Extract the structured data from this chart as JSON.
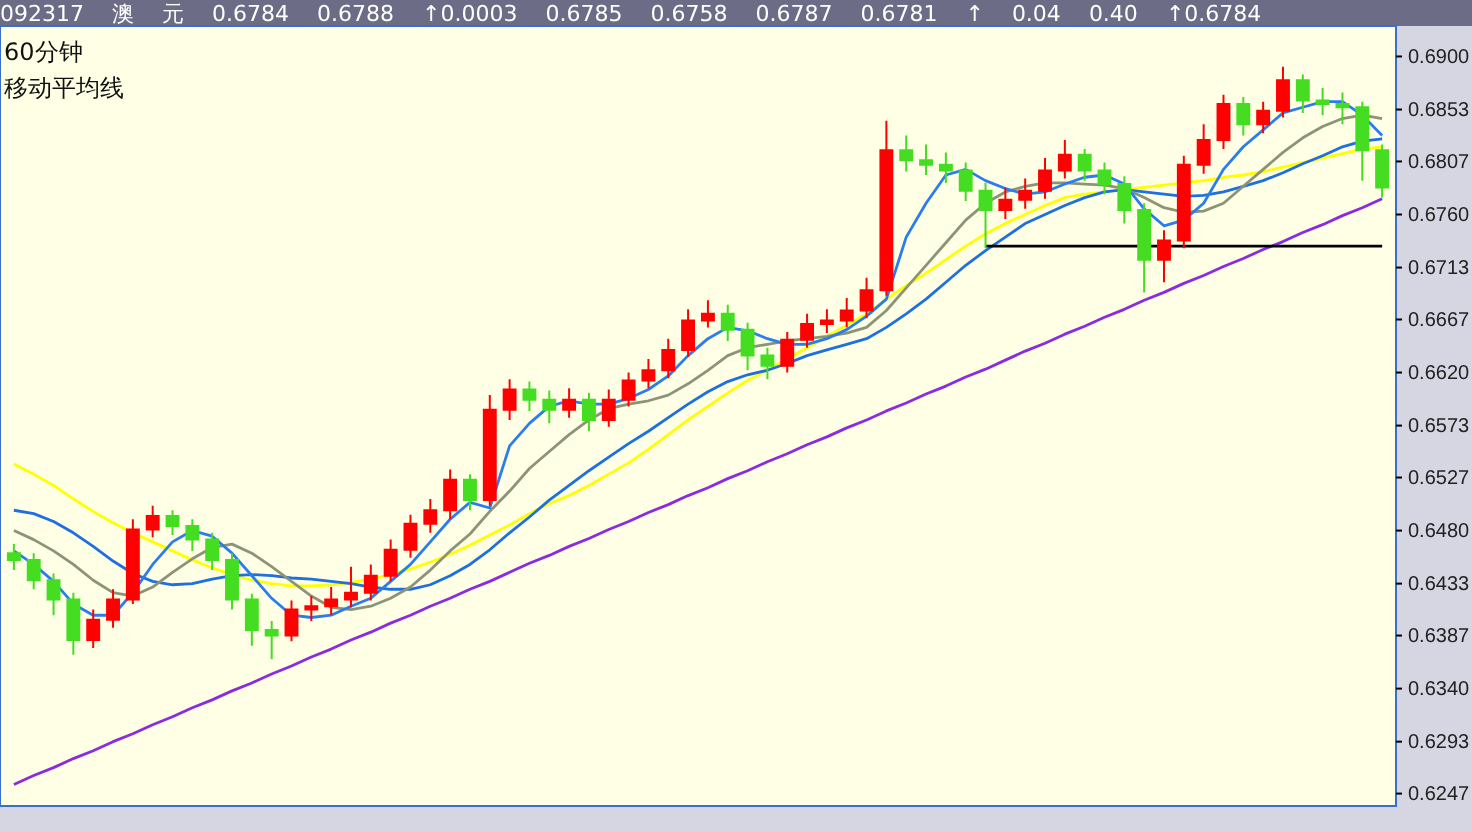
{
  "chart_data": {
    "type": "candlestick",
    "title": "60分钟",
    "subtitle": "移动平均线",
    "annotations": [
      "092317",
      "澳",
      "元",
      "0.6784",
      "0.6788",
      "↑0.0003",
      "0.6785",
      "0.6758",
      "0.6787",
      "0.6781",
      "↑",
      "0.04",
      "0.40",
      "↑0.6784"
    ],
    "categories": [
      null,
      null,
      null,
      null,
      null,
      null,
      null,
      null,
      null,
      null,
      null,
      null,
      null,
      null,
      null,
      null,
      null,
      null,
      null,
      null,
      null,
      null,
      null,
      null,
      null,
      null,
      null,
      null,
      null,
      null,
      null,
      null,
      null,
      null,
      null,
      null,
      null,
      null,
      null,
      null,
      null,
      null,
      null,
      null,
      null,
      null,
      null,
      null,
      null,
      null,
      null,
      null,
      null,
      null,
      null,
      null,
      null,
      null,
      null,
      null,
      null,
      null,
      null,
      null,
      null,
      null,
      null,
      null,
      null,
      null
    ],
    "ylim": [
      0.6236,
      0.6927
    ],
    "tick_labels": "y",
    "grid": false,
    "yticks": [
      {
        "value": 0.69,
        "label": "0.6900"
      },
      {
        "value": 0.6853,
        "label": "0.6853"
      },
      {
        "value": 0.6807,
        "label": "0.6807"
      },
      {
        "value": 0.676,
        "label": "0.6760"
      },
      {
        "value": 0.6713,
        "label": "0.6713"
      },
      {
        "value": 0.6667,
        "label": "0.6667"
      },
      {
        "value": 0.662,
        "label": "0.6620"
      },
      {
        "value": 0.6573,
        "label": "0.6573"
      },
      {
        "value": 0.6527,
        "label": "0.6527"
      },
      {
        "value": 0.648,
        "label": "0.6480"
      },
      {
        "value": 0.6433,
        "label": "0.6433"
      },
      {
        "value": 0.6387,
        "label": "0.6387"
      },
      {
        "value": 0.634,
        "label": "0.6340"
      },
      {
        "value": 0.6293,
        "label": "0.6293"
      },
      {
        "value": 0.6247,
        "label": "0.6247"
      }
    ],
    "series": [
      {
        "type": "line",
        "color": "#ffff00",
        "values": [
          0.6539,
          0.653,
          0.652,
          0.6508,
          0.6497,
          0.6487,
          0.6478,
          0.647,
          0.6462,
          0.6454,
          0.6447,
          0.6441,
          0.6436,
          0.6433,
          0.6431,
          0.6431,
          0.6432,
          0.6434,
          0.6437,
          0.6441,
          0.6446,
          0.6452,
          0.6459,
          0.6467,
          0.6476,
          0.6485,
          0.6495,
          0.6504,
          0.6511,
          0.652,
          0.653,
          0.654,
          0.6552,
          0.6565,
          0.6578,
          0.659,
          0.6602,
          0.6613,
          0.6622,
          0.6632,
          0.6642,
          0.6652,
          0.6662,
          0.6672,
          0.6685,
          0.6697,
          0.6708,
          0.672,
          0.6732,
          0.6743,
          0.6752,
          0.676,
          0.6768,
          0.6775,
          0.6778,
          0.678,
          0.6782,
          0.6784,
          0.6786,
          0.6788,
          0.679,
          0.6793,
          0.6795,
          0.6798,
          0.6802,
          0.6806,
          0.681,
          0.6814,
          0.6818,
          0.682
        ]
      },
      {
        "type": "line",
        "color": "#1e6fe0",
        "values": [
          0.6498,
          0.6495,
          0.6488,
          0.6478,
          0.6466,
          0.6453,
          0.6442,
          0.6435,
          0.6432,
          0.6433,
          0.6437,
          0.644,
          0.6441,
          0.644,
          0.6438,
          0.6437,
          0.6435,
          0.6433,
          0.643,
          0.6428,
          0.6428,
          0.6432,
          0.644,
          0.645,
          0.6463,
          0.6478,
          0.6492,
          0.6507,
          0.652,
          0.6533,
          0.6545,
          0.6557,
          0.6568,
          0.658,
          0.6592,
          0.6603,
          0.6612,
          0.6618,
          0.6622,
          0.6628,
          0.6635,
          0.664,
          0.6645,
          0.665,
          0.666,
          0.6672,
          0.6685,
          0.67,
          0.6715,
          0.6728,
          0.674,
          0.6752,
          0.676,
          0.6768,
          0.6775,
          0.678,
          0.6782,
          0.678,
          0.6778,
          0.6776,
          0.6777,
          0.678,
          0.6785,
          0.679,
          0.6797,
          0.6805,
          0.6812,
          0.682,
          0.6825,
          0.6827
        ]
      },
      {
        "type": "line",
        "color": "#8c9478",
        "values": [
          0.648,
          0.6472,
          0.6462,
          0.645,
          0.6436,
          0.6425,
          0.6422,
          0.643,
          0.6443,
          0.6455,
          0.6465,
          0.6468,
          0.646,
          0.6448,
          0.6435,
          0.6422,
          0.6412,
          0.641,
          0.6413,
          0.642,
          0.643,
          0.6445,
          0.6462,
          0.6477,
          0.6497,
          0.6515,
          0.6535,
          0.655,
          0.6565,
          0.6578,
          0.6588,
          0.6592,
          0.6595,
          0.66,
          0.661,
          0.6622,
          0.6635,
          0.6642,
          0.6645,
          0.6648,
          0.665,
          0.6652,
          0.6655,
          0.666,
          0.6675,
          0.6695,
          0.6715,
          0.6735,
          0.6755,
          0.677,
          0.678,
          0.6785,
          0.6788,
          0.6788,
          0.6787,
          0.6786,
          0.6783,
          0.6775,
          0.6766,
          0.6762,
          0.6763,
          0.677,
          0.6785,
          0.68,
          0.6815,
          0.6828,
          0.6838,
          0.6845,
          0.6848,
          0.6845
        ]
      },
      {
        "type": "line",
        "color": "#2a7df0",
        "values": [
          0.6462,
          0.645,
          0.6435,
          0.6415,
          0.6405,
          0.6405,
          0.6425,
          0.645,
          0.647,
          0.648,
          0.6475,
          0.646,
          0.644,
          0.642,
          0.6405,
          0.6403,
          0.6405,
          0.6413,
          0.642,
          0.6435,
          0.645,
          0.647,
          0.649,
          0.6505,
          0.65,
          0.6555,
          0.6575,
          0.659,
          0.6595,
          0.6592,
          0.6592,
          0.6597,
          0.6605,
          0.6617,
          0.6635,
          0.665,
          0.666,
          0.6657,
          0.665,
          0.6645,
          0.6645,
          0.665,
          0.6658,
          0.667,
          0.6685,
          0.674,
          0.677,
          0.6795,
          0.68,
          0.679,
          0.6783,
          0.6778,
          0.678,
          0.6787,
          0.6793,
          0.6795,
          0.6787,
          0.6765,
          0.675,
          0.6755,
          0.677,
          0.68,
          0.682,
          0.6835,
          0.685,
          0.6855,
          0.686,
          0.686,
          0.6848,
          0.683
        ]
      },
      {
        "type": "line",
        "color": "#8a2be2",
        "values": [
          0.6255,
          0.6263,
          0.627,
          0.6278,
          0.6285,
          0.6293,
          0.63,
          0.6308,
          0.6315,
          0.6323,
          0.633,
          0.6338,
          0.6345,
          0.6353,
          0.636,
          0.6368,
          0.6375,
          0.6383,
          0.639,
          0.6398,
          0.6405,
          0.6413,
          0.642,
          0.6428,
          0.6435,
          0.6443,
          0.6451,
          0.6458,
          0.6466,
          0.6473,
          0.6481,
          0.6488,
          0.6496,
          0.6503,
          0.6511,
          0.6518,
          0.6526,
          0.6533,
          0.6541,
          0.6548,
          0.6556,
          0.6563,
          0.6571,
          0.6578,
          0.6586,
          0.6593,
          0.6601,
          0.6608,
          0.6616,
          0.6623,
          0.6631,
          0.6639,
          0.6646,
          0.6654,
          0.6661,
          0.6669,
          0.6676,
          0.6684,
          0.6691,
          0.6699,
          0.6706,
          0.6714,
          0.6721,
          0.6729,
          0.6736,
          0.6744,
          0.6751,
          0.6759,
          0.6766,
          0.6774
        ]
      },
      {
        "type": "line",
        "color": "#000000",
        "values": [
          null,
          null,
          null,
          null,
          null,
          null,
          null,
          null,
          null,
          null,
          null,
          null,
          null,
          null,
          null,
          null,
          null,
          null,
          null,
          null,
          null,
          null,
          null,
          null,
          null,
          null,
          null,
          null,
          null,
          null,
          null,
          null,
          null,
          null,
          null,
          null,
          null,
          null,
          null,
          null,
          null,
          null,
          null,
          null,
          null,
          null,
          null,
          null,
          null,
          0.6732,
          0.6732,
          0.6732,
          0.6732,
          0.6732,
          0.6732,
          0.6732,
          0.6732,
          0.6732,
          0.6732,
          0.6732,
          0.6732,
          0.6732,
          0.6732,
          0.6732,
          0.6732,
          0.6732,
          0.6732,
          0.6732,
          0.6732,
          0.6732
        ]
      },
      {
        "type": "candlestick",
        "colors": [
          "#44dd22",
          "#44dd22",
          "#44dd22",
          "#44dd22",
          "#ff0000",
          "#ff0000",
          "#ff0000",
          "#ff0000",
          "#44dd22",
          "#44dd22",
          "#44dd22",
          "#44dd22",
          "#44dd22",
          "#44dd22",
          "#ff0000",
          "#ff0000",
          "#ff0000",
          "#ff0000",
          "#ff0000",
          "#ff0000",
          "#ff0000",
          "#ff0000",
          "#ff0000",
          "#44dd22",
          "#ff0000",
          "#ff0000",
          "#44dd22",
          "#44dd22",
          "#ff0000",
          "#44dd22",
          "#ff0000",
          "#ff0000",
          "#ff0000",
          "#ff0000",
          "#ff0000",
          "#ff0000",
          "#44dd22",
          "#44dd22",
          "#44dd22",
          "#ff0000",
          "#ff0000",
          "#ff0000",
          "#ff0000",
          "#ff0000",
          "#ff0000",
          "#44dd22",
          "#44dd22",
          "#44dd22",
          "#44dd22",
          "#44dd22",
          "#ff0000",
          "#ff0000",
          "#ff0000",
          "#ff0000",
          "#44dd22",
          "#44dd22",
          "#44dd22",
          "#44dd22",
          "#ff0000",
          "#ff0000",
          "#ff0000",
          "#ff0000",
          "#44dd22",
          "#ff0000",
          "#ff0000",
          "#44dd22",
          "#44dd22",
          "#44dd22",
          "#44dd22",
          "#44dd22"
        ],
        "ohlc": [
          [
            0.646,
            0.6468,
            0.6445,
            0.6454
          ],
          [
            0.6454,
            0.646,
            0.6428,
            0.6436
          ],
          [
            0.6436,
            0.6442,
            0.6405,
            0.6419
          ],
          [
            0.6419,
            0.6425,
            0.637,
            0.6383
          ],
          [
            0.6383,
            0.641,
            0.6376,
            0.6401
          ],
          [
            0.6401,
            0.6428,
            0.6394,
            0.6419
          ],
          [
            0.6419,
            0.649,
            0.6415,
            0.6481
          ],
          [
            0.6481,
            0.6502,
            0.6474,
            0.6493
          ],
          [
            0.6493,
            0.6498,
            0.6476,
            0.6484
          ],
          [
            0.6484,
            0.649,
            0.6462,
            0.6472
          ],
          [
            0.6472,
            0.6478,
            0.6445,
            0.6454
          ],
          [
            0.6454,
            0.646,
            0.641,
            0.6419
          ],
          [
            0.6419,
            0.6424,
            0.6378,
            0.6392
          ],
          [
            0.6392,
            0.64,
            0.6366,
            0.6387
          ],
          [
            0.6387,
            0.6418,
            0.6382,
            0.641
          ],
          [
            0.641,
            0.6422,
            0.64,
            0.6413
          ],
          [
            0.6413,
            0.643,
            0.6405,
            0.6419
          ],
          [
            0.6419,
            0.6448,
            0.6412,
            0.6425
          ],
          [
            0.6425,
            0.645,
            0.6418,
            0.644
          ],
          [
            0.644,
            0.6472,
            0.6435,
            0.6463
          ],
          [
            0.6463,
            0.6494,
            0.6456,
            0.6486
          ],
          [
            0.6486,
            0.6508,
            0.6478,
            0.6498
          ],
          [
            0.6498,
            0.6534,
            0.649,
            0.6525
          ],
          [
            0.6525,
            0.653,
            0.6498,
            0.6507
          ],
          [
            0.6507,
            0.66,
            0.6502,
            0.6587
          ],
          [
            0.6587,
            0.6614,
            0.6578,
            0.6605
          ],
          [
            0.6605,
            0.6612,
            0.6586,
            0.6596
          ],
          [
            0.6596,
            0.6604,
            0.6575,
            0.6587
          ],
          [
            0.6587,
            0.6606,
            0.658,
            0.6596
          ],
          [
            0.6596,
            0.6602,
            0.6568,
            0.6578
          ],
          [
            0.6578,
            0.6605,
            0.6572,
            0.6596
          ],
          [
            0.6596,
            0.662,
            0.659,
            0.6613
          ],
          [
            0.6613,
            0.6632,
            0.6606,
            0.6622
          ],
          [
            0.6622,
            0.665,
            0.6615,
            0.664
          ],
          [
            0.664,
            0.6676,
            0.6634,
            0.6666
          ],
          [
            0.6666,
            0.6684,
            0.666,
            0.6672
          ],
          [
            0.6672,
            0.668,
            0.6648,
            0.6658
          ],
          [
            0.6658,
            0.6664,
            0.6622,
            0.6635
          ],
          [
            0.6635,
            0.6642,
            0.6614,
            0.6626
          ],
          [
            0.6626,
            0.6656,
            0.662,
            0.6649
          ],
          [
            0.6649,
            0.6672,
            0.6642,
            0.6663
          ],
          [
            0.6663,
            0.6676,
            0.6655,
            0.6666
          ],
          [
            0.6666,
            0.6686,
            0.666,
            0.6675
          ],
          [
            0.6675,
            0.6704,
            0.6668,
            0.6693
          ],
          [
            0.6693,
            0.6843,
            0.6688,
            0.6817
          ],
          [
            0.6817,
            0.683,
            0.6798,
            0.6808
          ],
          [
            0.6808,
            0.6822,
            0.6795,
            0.6804
          ],
          [
            0.6804,
            0.6815,
            0.6788,
            0.6799
          ],
          [
            0.6799,
            0.6806,
            0.6772,
            0.6781
          ],
          [
            0.6781,
            0.6788,
            0.673,
            0.6764
          ],
          [
            0.6764,
            0.6784,
            0.6756,
            0.6773
          ],
          [
            0.6773,
            0.6792,
            0.6765,
            0.6781
          ],
          [
            0.6781,
            0.681,
            0.6774,
            0.6799
          ],
          [
            0.6799,
            0.6826,
            0.6792,
            0.6813
          ],
          [
            0.6813,
            0.6818,
            0.679,
            0.6799
          ],
          [
            0.6799,
            0.6806,
            0.6778,
            0.6787
          ],
          [
            0.6787,
            0.6794,
            0.6752,
            0.6764
          ],
          [
            0.6764,
            0.677,
            0.6691,
            0.672
          ],
          [
            0.672,
            0.6746,
            0.67,
            0.6737
          ],
          [
            0.6737,
            0.6812,
            0.673,
            0.6804
          ],
          [
            0.6804,
            0.684,
            0.6796,
            0.6826
          ],
          [
            0.6826,
            0.6866,
            0.6818,
            0.6858
          ],
          [
            0.6858,
            0.6864,
            0.683,
            0.684
          ],
          [
            0.684,
            0.686,
            0.6832,
            0.6852
          ],
          [
            0.6852,
            0.6891,
            0.6846,
            0.6879
          ],
          [
            0.6879,
            0.6884,
            0.685,
            0.6861
          ],
          [
            0.6861,
            0.6872,
            0.6848,
            0.6858
          ],
          [
            0.6858,
            0.6868,
            0.684,
            0.6855
          ],
          [
            0.6855,
            0.686,
            0.679,
            0.6817
          ],
          [
            0.6817,
            0.6822,
            0.6775,
            0.6784
          ]
        ]
      }
    ]
  }
}
